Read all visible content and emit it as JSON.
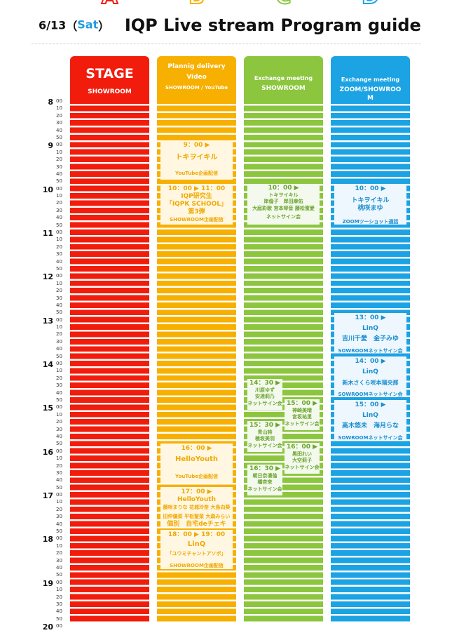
{
  "header": {
    "date": "6/13",
    "day": "Sat",
    "title": "IQP Live stream Program guide"
  },
  "columns": [
    {
      "letter": "A",
      "color": "#f21c0c",
      "lines": [
        "STAGE",
        "SHOWROOM"
      ]
    },
    {
      "letter": "B",
      "color": "#f7b000",
      "lines": [
        "Plannig delivery",
        "Video",
        "SHOWROOM / YouTube"
      ]
    },
    {
      "letter": "C",
      "color": "#8cc63f",
      "lines": [
        "Exchange meeting",
        "SHOWROOM"
      ]
    },
    {
      "letter": "D",
      "color": "#1ca3e4",
      "lines": [
        "Exchange meeting",
        "ZOOM/SHOWROO",
        "M"
      ]
    }
  ],
  "hours": [
    "8",
    "9",
    "10",
    "11",
    "12",
    "13",
    "14",
    "15",
    "16",
    "17",
    "18",
    "19",
    "20"
  ],
  "minutes": [
    "00",
    "10",
    "20",
    "30",
    "40",
    "50"
  ],
  "events": {
    "b1": [
      "9：00 ▶",
      "トキヲイキル",
      "YouTube企画配信"
    ],
    "b2": [
      "10：00 ▶ 11：00",
      "IQP研究生",
      "「IQPK SCHOOL」",
      "第3弾",
      "SHOWROOM企画配信"
    ],
    "b3": [
      "16：00 ▶",
      "HelloYouth",
      "YouTube企画配信"
    ],
    "b4": [
      "17：00 ▶",
      "HelloYouth",
      "藤咲まりな 花城玲奈 大島向葵",
      "田仲優菜 平松聖菜 大森みらい",
      "個別　自宅deチェキ"
    ],
    "b5": [
      "18：00 ▶ 19：00",
      "LinQ",
      "「ユウミチャントアソボ」",
      "SHOWROOM企画配信"
    ],
    "c1": [
      "10：00 ▶",
      "トキヲイキル",
      "岸倫子　岸田麻佑",
      "大庭彩歌 宮本琴音 藤松蜜愛",
      "ネットサイン会"
    ],
    "c2": [
      "14：30 ▶",
      "川原ゆず",
      "安達莉乃",
      "ネットサイン会"
    ],
    "c3": [
      "15：00 ▶",
      "神崎美晴",
      "宮坂祐里",
      "ネットサイン会"
    ],
    "c4": [
      "15：30 ▶",
      "青山詩",
      "極坂美羽",
      "ネットサイン会"
    ],
    "c5": [
      "16：00 ▶",
      "黒田れい",
      "大空莉子",
      "ネットサイン会"
    ],
    "c6": [
      "16：30 ▶",
      "朝日奈凛倫",
      "橘杏來",
      "ネットサイン会"
    ],
    "d1": [
      "10：00 ▶",
      "トキヲイキル",
      "桃咲まゆ",
      "ZOOMツーショット通話"
    ],
    "d2": [
      "13：00 ▶",
      "LinQ",
      "吉川千愛　金子みゆ",
      "SOWROOMネットサイン会"
    ],
    "d3": [
      "14：00 ▶",
      "LinQ",
      "新木さくら咲本瑠央那",
      "SOWROOMネットサイン会"
    ],
    "d4": [
      "15：00 ▶",
      "LinQ",
      "高木悠未　海月らな",
      "SOWROOMネットサイン会"
    ]
  }
}
